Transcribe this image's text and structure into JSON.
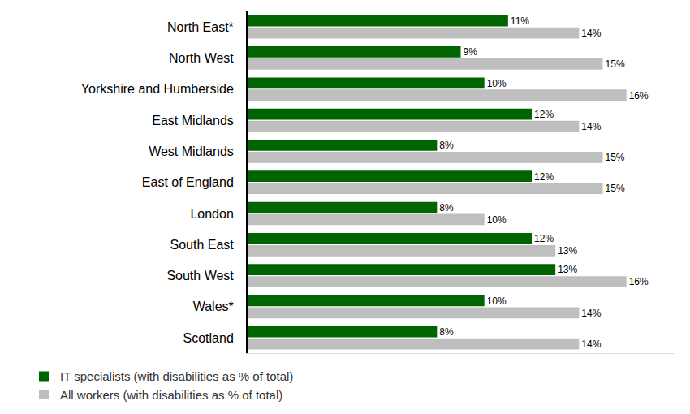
{
  "chart_data": {
    "type": "bar",
    "orientation": "horizontal",
    "categories": [
      "North East*",
      "North West",
      "Yorkshire and Humberside",
      "East Midlands",
      "West Midlands",
      "East of England",
      "London",
      "South East",
      "South West",
      "Wales*",
      "Scotland"
    ],
    "series": [
      {
        "name": "IT specialists (with disabilities as % of total)",
        "color": "#006400",
        "values": [
          11,
          9,
          10,
          12,
          8,
          12,
          8,
          12,
          13,
          10,
          8
        ],
        "value_labels": [
          "11%",
          "9%",
          "10%",
          "12%",
          "8%",
          "12%",
          "8%",
          "12%",
          "13%",
          "10%",
          "8%"
        ]
      },
      {
        "name": "All workers (with disabilities as % of total)",
        "color": "#bfbfbf",
        "values": [
          14,
          15,
          16,
          14,
          15,
          15,
          10,
          13,
          16,
          14,
          14
        ],
        "value_labels": [
          "14%",
          "15%",
          "16%",
          "14%",
          "15%",
          "15%",
          "10%",
          "13%",
          "16%",
          "14%",
          "14%"
        ]
      }
    ],
    "xlim": [
      0,
      18
    ],
    "xticks": [],
    "grid": false,
    "data_labels": true,
    "tick_labels": "y",
    "legend": "bottom"
  }
}
